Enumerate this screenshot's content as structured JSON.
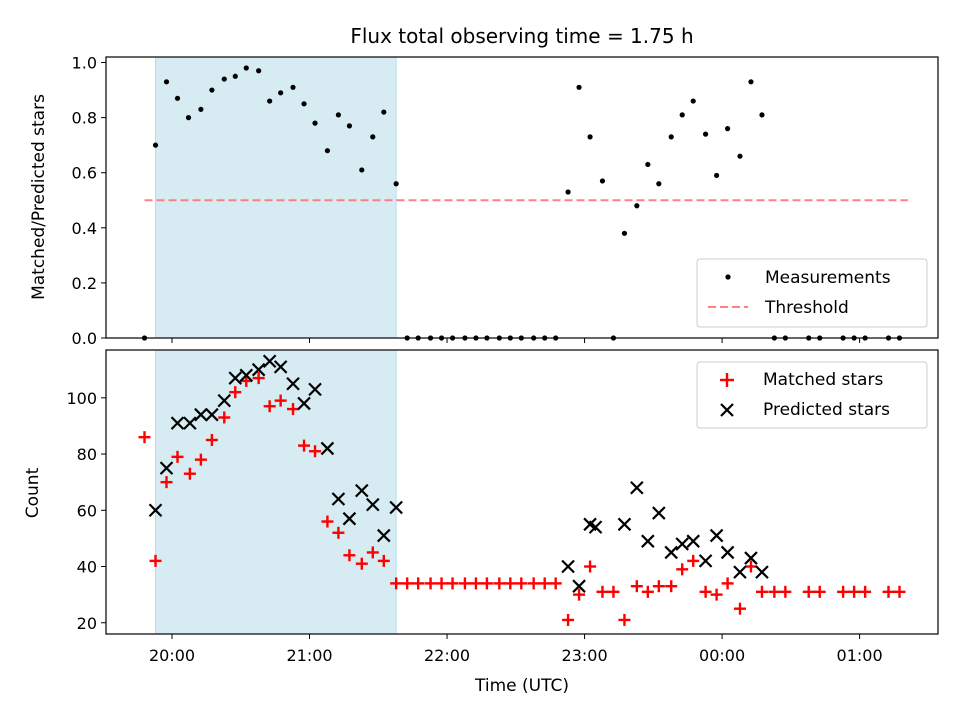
{
  "chart_data": {
    "title": "Flux total observing time = 1.75 h",
    "xlabel": "Time (UTC)",
    "x_tick_labels": [
      "20:00",
      "21:00",
      "22:00",
      "23:00",
      "00:00",
      "01:00"
    ],
    "x_tick_hours": [
      20,
      21,
      22,
      23,
      24,
      25
    ],
    "xlim_hours": [
      19.52,
      25.57
    ],
    "shaded_region_hours": [
      19.88,
      21.63
    ],
    "shaded_color": "#add8e6",
    "top": {
      "type": "scatter",
      "ylabel": "Matched/Predicted stars",
      "ylim": [
        0,
        1.02
      ],
      "yticks": [
        0.0,
        0.2,
        0.4,
        0.6,
        0.8,
        1.0
      ],
      "threshold": {
        "value": 0.5,
        "x_range_hours": [
          19.8,
          25.35
        ],
        "color": "#ff8080"
      },
      "measurements": [
        [
          19.8,
          0.0
        ],
        [
          19.88,
          0.7
        ],
        [
          19.96,
          0.93
        ],
        [
          20.04,
          0.87
        ],
        [
          20.12,
          0.8
        ],
        [
          20.21,
          0.83
        ],
        [
          20.29,
          0.9
        ],
        [
          20.38,
          0.94
        ],
        [
          20.46,
          0.95
        ],
        [
          20.54,
          0.98
        ],
        [
          20.63,
          0.97
        ],
        [
          20.71,
          0.86
        ],
        [
          20.79,
          0.89
        ],
        [
          20.88,
          0.91
        ],
        [
          20.96,
          0.85
        ],
        [
          21.04,
          0.78
        ],
        [
          21.13,
          0.68
        ],
        [
          21.21,
          0.81
        ],
        [
          21.29,
          0.77
        ],
        [
          21.38,
          0.61
        ],
        [
          21.46,
          0.73
        ],
        [
          21.54,
          0.82
        ],
        [
          21.63,
          0.56
        ],
        [
          21.71,
          0.0
        ],
        [
          21.79,
          0.0
        ],
        [
          21.88,
          0.0
        ],
        [
          21.96,
          0.0
        ],
        [
          22.04,
          0.0
        ],
        [
          22.13,
          0.0
        ],
        [
          22.21,
          0.0
        ],
        [
          22.29,
          0.0
        ],
        [
          22.38,
          0.0
        ],
        [
          22.46,
          0.0
        ],
        [
          22.54,
          0.0
        ],
        [
          22.63,
          0.0
        ],
        [
          22.71,
          0.0
        ],
        [
          22.79,
          0.0
        ],
        [
          22.88,
          0.53
        ],
        [
          22.96,
          0.91
        ],
        [
          23.04,
          0.73
        ],
        [
          23.13,
          0.57
        ],
        [
          23.21,
          0.0
        ],
        [
          23.29,
          0.38
        ],
        [
          23.38,
          0.48
        ],
        [
          23.46,
          0.63
        ],
        [
          23.54,
          0.56
        ],
        [
          23.63,
          0.73
        ],
        [
          23.71,
          0.81
        ],
        [
          23.79,
          0.86
        ],
        [
          23.88,
          0.74
        ],
        [
          23.96,
          0.59
        ],
        [
          24.04,
          0.76
        ],
        [
          24.13,
          0.66
        ],
        [
          24.21,
          0.93
        ],
        [
          24.29,
          0.81
        ],
        [
          24.38,
          0.0
        ],
        [
          24.46,
          0.0
        ],
        [
          24.63,
          0.0
        ],
        [
          24.71,
          0.0
        ],
        [
          24.88,
          0.0
        ],
        [
          24.96,
          0.0
        ],
        [
          25.04,
          0.0
        ],
        [
          25.21,
          0.0
        ],
        [
          25.29,
          0.0
        ]
      ],
      "legend": {
        "placement": "lower right",
        "entries": [
          "Measurements",
          "Threshold"
        ]
      }
    },
    "bottom": {
      "type": "scatter",
      "ylabel": "Count",
      "ylim": [
        16,
        117
      ],
      "yticks": [
        20,
        40,
        60,
        80,
        100
      ],
      "series": [
        {
          "name": "Matched stars",
          "marker": "+",
          "color": "#ff0000",
          "points": [
            [
              19.8,
              86
            ],
            [
              19.88,
              42
            ],
            [
              19.96,
              70
            ],
            [
              20.04,
              79
            ],
            [
              20.13,
              73
            ],
            [
              20.21,
              78
            ],
            [
              20.29,
              85
            ],
            [
              20.38,
              93
            ],
            [
              20.46,
              102
            ],
            [
              20.54,
              106
            ],
            [
              20.63,
              107
            ],
            [
              20.71,
              97
            ],
            [
              20.79,
              99
            ],
            [
              20.88,
              96
            ],
            [
              20.96,
              83
            ],
            [
              21.04,
              81
            ],
            [
              21.13,
              56
            ],
            [
              21.21,
              52
            ],
            [
              21.29,
              44
            ],
            [
              21.38,
              41
            ],
            [
              21.46,
              45
            ],
            [
              21.54,
              42
            ],
            [
              21.63,
              34
            ],
            [
              21.71,
              34
            ],
            [
              21.79,
              34
            ],
            [
              21.88,
              34
            ],
            [
              21.96,
              34
            ],
            [
              22.04,
              34
            ],
            [
              22.13,
              34
            ],
            [
              22.21,
              34
            ],
            [
              22.29,
              34
            ],
            [
              22.38,
              34
            ],
            [
              22.46,
              34
            ],
            [
              22.54,
              34
            ],
            [
              22.63,
              34
            ],
            [
              22.71,
              34
            ],
            [
              22.79,
              34
            ],
            [
              22.88,
              21
            ],
            [
              22.96,
              30
            ],
            [
              23.04,
              40
            ],
            [
              23.13,
              31
            ],
            [
              23.21,
              31
            ],
            [
              23.29,
              21
            ],
            [
              23.38,
              33
            ],
            [
              23.46,
              31
            ],
            [
              23.54,
              33
            ],
            [
              23.63,
              33
            ],
            [
              23.71,
              39
            ],
            [
              23.79,
              42
            ],
            [
              23.88,
              31
            ],
            [
              23.96,
              30
            ],
            [
              24.04,
              34
            ],
            [
              24.13,
              25
            ],
            [
              24.21,
              40
            ],
            [
              24.29,
              31
            ],
            [
              24.38,
              31
            ],
            [
              24.46,
              31
            ],
            [
              24.63,
              31
            ],
            [
              24.71,
              31
            ],
            [
              24.88,
              31
            ],
            [
              24.96,
              31
            ],
            [
              25.04,
              31
            ],
            [
              25.21,
              31
            ],
            [
              25.29,
              31
            ]
          ]
        },
        {
          "name": "Predicted stars",
          "marker": "x",
          "color": "#000000",
          "points": [
            [
              19.88,
              60
            ],
            [
              19.96,
              75
            ],
            [
              20.04,
              91
            ],
            [
              20.13,
              91
            ],
            [
              20.21,
              94
            ],
            [
              20.29,
              94
            ],
            [
              20.38,
              99
            ],
            [
              20.46,
              107
            ],
            [
              20.54,
              108
            ],
            [
              20.63,
              110
            ],
            [
              20.71,
              113
            ],
            [
              20.79,
              111
            ],
            [
              20.88,
              105
            ],
            [
              20.96,
              98
            ],
            [
              21.04,
              103
            ],
            [
              21.13,
              82
            ],
            [
              21.21,
              64
            ],
            [
              21.29,
              57
            ],
            [
              21.38,
              67
            ],
            [
              21.46,
              62
            ],
            [
              21.54,
              51
            ],
            [
              21.63,
              61
            ],
            [
              22.88,
              40
            ],
            [
              22.96,
              33
            ],
            [
              23.04,
              55
            ],
            [
              23.08,
              54
            ],
            [
              23.29,
              55
            ],
            [
              23.38,
              68
            ],
            [
              23.46,
              49
            ],
            [
              23.54,
              59
            ],
            [
              23.63,
              45
            ],
            [
              23.71,
              48
            ],
            [
              23.79,
              49
            ],
            [
              23.88,
              42
            ],
            [
              23.96,
              51
            ],
            [
              24.04,
              45
            ],
            [
              24.13,
              38
            ],
            [
              24.21,
              43
            ],
            [
              24.29,
              38
            ]
          ]
        }
      ],
      "legend": {
        "placement": "upper right",
        "entries": [
          "Matched stars",
          "Predicted stars"
        ]
      }
    }
  }
}
